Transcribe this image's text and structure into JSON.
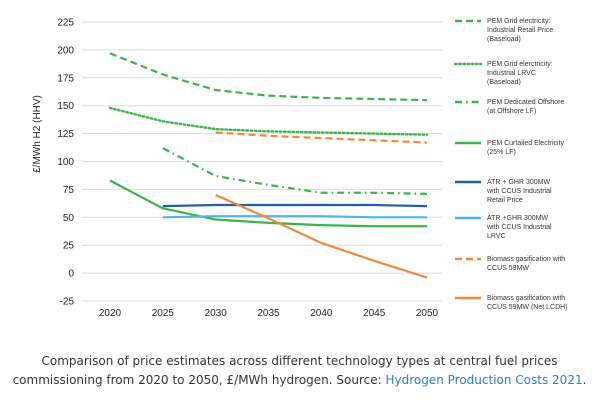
{
  "chart_data": {
    "type": "line",
    "title": "",
    "xlabel": "",
    "ylabel": "£/MWh H2 (HHV)",
    "ylim": [
      -25,
      225
    ],
    "yticks": [
      225,
      200,
      175,
      150,
      125,
      100,
      75,
      50,
      25,
      0,
      -25
    ],
    "xticks": [
      2020,
      2025,
      2030,
      2035,
      2040,
      2045,
      2050
    ],
    "grid": "horizontal",
    "legend": "right",
    "series": [
      {
        "name": [
          "PEM Grid electricity:",
          "Industrial Retail  Price",
          "(Baseload)"
        ],
        "color": "#3cb44b",
        "dash": "dashed",
        "x": [
          2020,
          2025,
          2030,
          2035,
          2040,
          2045,
          2050
        ],
        "y": [
          197,
          178,
          164,
          159,
          157,
          156,
          155
        ]
      },
      {
        "name": [
          "PEM Grid elerctricity:",
          "Industrial LRVC",
          "(Baseload)"
        ],
        "color": "#3cb44b",
        "dash": "dotted",
        "x": [
          2020,
          2025,
          2030,
          2035,
          2040,
          2045,
          2050
        ],
        "y": [
          148,
          136,
          129,
          127,
          126,
          125,
          124
        ]
      },
      {
        "name": [
          "PEM Dedicated Offshore",
          "(at Offshore LF)"
        ],
        "color": "#3cb44b",
        "dash": "dashdot",
        "x": [
          2025,
          2030,
          2035,
          2040,
          2045,
          2050
        ],
        "y": [
          112,
          87,
          79,
          72,
          72,
          71
        ]
      },
      {
        "name": [
          "PEM Curtailed Electricity",
          "(25% LF)"
        ],
        "color": "#3cb44b",
        "dash": "solid",
        "x": [
          2020,
          2025,
          2030,
          2035,
          2040,
          2045,
          2050
        ],
        "y": [
          83,
          58,
          48,
          45,
          43,
          42,
          42
        ]
      },
      {
        "name": [
          "ATR + GHR 300MW",
          "with CCUS Industrial",
          "Retail Price"
        ],
        "color": "#1f5fa8",
        "dash": "solid",
        "x": [
          2025,
          2030,
          2035,
          2040,
          2045,
          2050
        ],
        "y": [
          60,
          61,
          61,
          61,
          61,
          60
        ]
      },
      {
        "name": [
          "ATR +GHR 300MW",
          "with CCUS Industrial",
          "LRVC"
        ],
        "color": "#4db6e8",
        "dash": "solid",
        "x": [
          2025,
          2030,
          2035,
          2040,
          2045,
          2050
        ],
        "y": [
          50,
          51,
          51,
          51,
          50,
          50
        ]
      },
      {
        "name": [
          "Biomass gasification with",
          "CCUS 59MW"
        ],
        "color": "#ef8a3a",
        "dash": "dashed",
        "x": [
          2030,
          2035,
          2040,
          2045,
          2050
        ],
        "y": [
          126,
          123,
          121,
          119,
          117
        ]
      },
      {
        "name": [
          "Biomass gasification with",
          "CCUS 59MW (Net LCDH)"
        ],
        "color": "#ef8a3a",
        "dash": "solid",
        "x": [
          2030,
          2035,
          2040,
          2045,
          2050
        ],
        "y": [
          70,
          49,
          27,
          11,
          -4
        ]
      }
    ]
  },
  "caption": {
    "line1": "Comparison of price estimates across different technology types at central fuel prices",
    "line2_prefix": "commissioning from 2020 to 2050, £/MWh hydrogen. Source: ",
    "link_text": "Hydrogen Production Costs 2021",
    "line2_suffix": "."
  }
}
